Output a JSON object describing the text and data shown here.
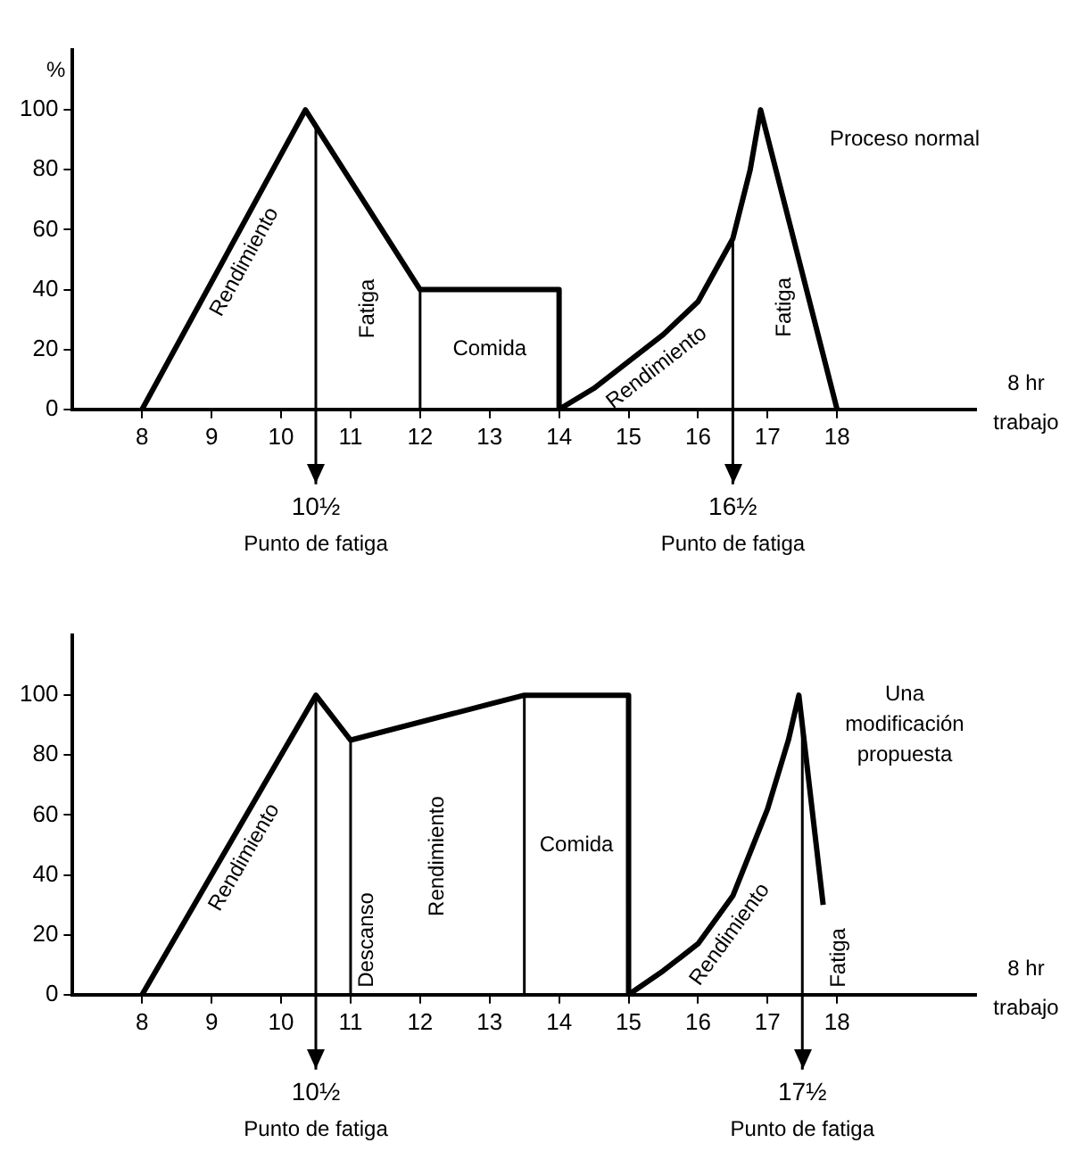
{
  "chart_data": [
    {
      "type": "line",
      "ylabel": "%",
      "xlabel": "8 hr trabajo",
      "xlim": [
        7,
        20
      ],
      "xticks": [
        8,
        9,
        10,
        11,
        12,
        13,
        14,
        15,
        16,
        17,
        18
      ],
      "ylim": [
        0,
        120
      ],
      "yticks": [
        0,
        20,
        40,
        60,
        80,
        100
      ],
      "grid": false,
      "legend": false,
      "series": [
        {
          "color": "#000000",
          "x": [
            8,
            10.35,
            12,
            14,
            14,
            14.5,
            15,
            15.5,
            16,
            16.5,
            16.75,
            16.9,
            18
          ],
          "values": [
            0,
            100,
            40,
            40,
            0,
            7,
            16,
            25,
            36,
            57,
            80,
            100,
            0
          ]
        }
      ],
      "ref_lines": [
        {
          "axis": "x",
          "value": 10.5,
          "label": "10½ Punto de fatiga"
        },
        {
          "axis": "x",
          "value": 12,
          "label": null
        },
        {
          "axis": "x",
          "value": 16.5,
          "label": "16½ Punto de fatiga"
        }
      ],
      "annotations": [
        "Rendimiento",
        "Fatiga",
        "Comida",
        "Rendimiento",
        "Fatiga",
        "Proceso normal"
      ]
    },
    {
      "type": "line",
      "xlabel": "8 hr trabajo",
      "xlim": [
        7,
        20
      ],
      "xticks": [
        8,
        9,
        10,
        11,
        12,
        13,
        14,
        15,
        16,
        17,
        18
      ],
      "ylim": [
        0,
        120
      ],
      "yticks": [
        0,
        20,
        40,
        60,
        80,
        100
      ],
      "grid": false,
      "legend": false,
      "series": [
        {
          "color": "#000000",
          "x": [
            8,
            10.5,
            11,
            13,
            13.5,
            15,
            15,
            15.5,
            16,
            16.5,
            17,
            17.3,
            17.45,
            17.8
          ],
          "values": [
            0,
            100,
            85,
            97,
            100,
            100,
            0,
            8,
            17,
            33,
            62,
            85,
            100,
            30
          ]
        }
      ],
      "ref_lines": [
        {
          "axis": "x",
          "value": 10.5,
          "label": "10½ Punto de fatiga"
        },
        {
          "axis": "x",
          "value": 11,
          "label": null
        },
        {
          "axis": "x",
          "value": 13.5,
          "label": null
        },
        {
          "axis": "x",
          "value": 17.5,
          "label": "17½ Punto de fatiga"
        }
      ],
      "annotations": [
        "Rendimiento",
        "Descanso",
        "Rendimiento",
        "Comida",
        "Rendimiento",
        "Fatiga",
        "Una modificación propuesta"
      ]
    }
  ]
}
